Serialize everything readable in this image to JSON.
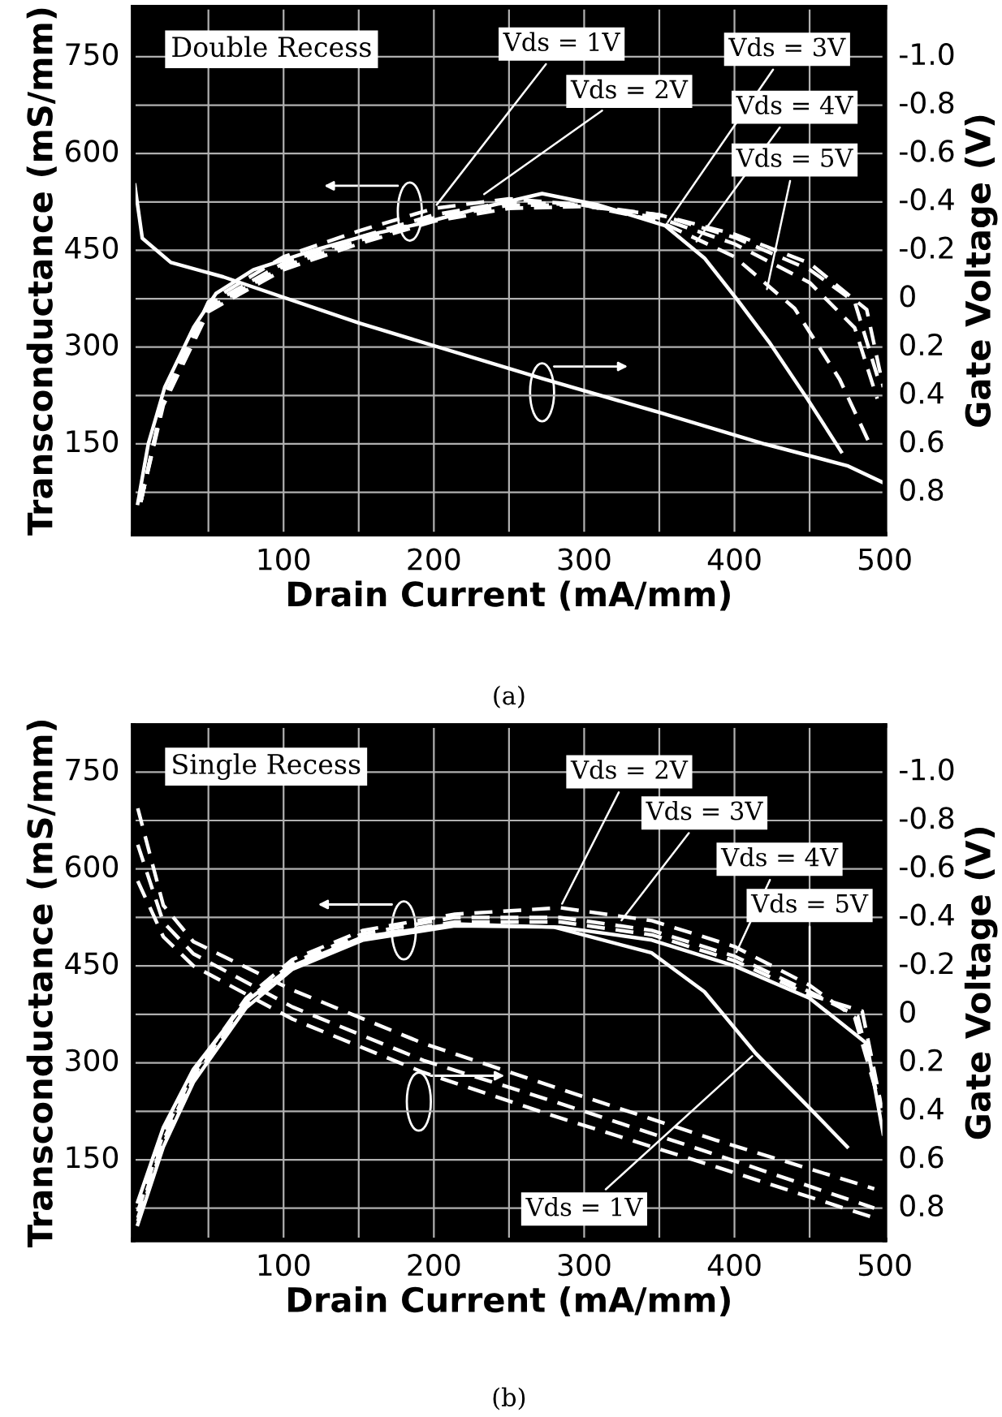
{
  "chart_data": [
    {
      "type": "line",
      "title": "Double Recess",
      "xlabel": "Drain Current (mA/mm)",
      "ylabel": "Transconductance (mS/mm)",
      "y2label": "Gate Voltage (V)",
      "grid": true,
      "xlim": [
        0,
        500
      ],
      "xticks": [
        {
          "value": 50,
          "label": null
        },
        100,
        {
          "value": 150,
          "label": null
        },
        200,
        {
          "value": 250,
          "label": null
        },
        300,
        {
          "value": 350,
          "label": null
        },
        400,
        {
          "value": 450,
          "label": null
        },
        500
      ],
      "ylim": [
        10,
        827
      ],
      "yticks": [
        {
          "value": 75,
          "label": null
        },
        150,
        {
          "value": 225,
          "label": null
        },
        300,
        {
          "value": 375,
          "label": null
        },
        450,
        {
          "value": 525,
          "label": null
        },
        600,
        {
          "value": 675,
          "label": null
        },
        750
      ],
      "y2lim": [
        0.973,
        -1.205
      ],
      "y2ticks": [
        {
          "value": -1.0,
          "label": "-1.0"
        },
        -0.8,
        -0.6,
        -0.4,
        -0.2,
        0,
        0.2,
        0.4,
        0.6,
        0.8
      ],
      "series": [
        {
          "color": "#ffffff",
          "line_style": "solid",
          "x": [
            3,
            10,
            21,
            40,
            55,
            80,
            120,
            155,
            194,
            230,
            272,
            310,
            354,
            380,
            402,
            423,
            449,
            471
          ],
          "values": [
            58,
            150,
            238,
            330,
            383,
            420,
            450,
            473,
            493,
            515,
            538,
            520,
            488,
            438,
            373,
            308,
            218,
            138
          ]
        },
        {
          "color": "#ffffff",
          "line_style": "dashed",
          "x": [
            5,
            20,
            50,
            100,
            150,
            200,
            250,
            300,
            350,
            400,
            440,
            470,
            490
          ],
          "values": [
            60,
            220,
            370,
            440,
            480,
            515,
            530,
            520,
            495,
            440,
            360,
            250,
            150
          ]
        },
        {
          "color": "#ffffff",
          "line_style": "dashed",
          "x": [
            5,
            20,
            50,
            100,
            150,
            200,
            250,
            300,
            350,
            400,
            450,
            480,
            495
          ],
          "values": [
            60,
            220,
            365,
            430,
            470,
            505,
            525,
            520,
            500,
            460,
            400,
            330,
            220
          ]
        },
        {
          "color": "#ffffff",
          "line_style": "dashed",
          "x": [
            5,
            20,
            50,
            100,
            150,
            200,
            250,
            300,
            350,
            400,
            450,
            480,
            497
          ],
          "values": [
            60,
            215,
            360,
            425,
            465,
            500,
            520,
            520,
            505,
            470,
            420,
            370,
            240
          ]
        },
        {
          "color": "#ffffff",
          "line_style": "dashed",
          "x": [
            5,
            20,
            50,
            100,
            150,
            200,
            250,
            300,
            350,
            400,
            450,
            488,
            499
          ],
          "values": [
            60,
            210,
            355,
            420,
            460,
            495,
            515,
            518,
            505,
            475,
            430,
            358,
            238
          ]
        },
        {
          "color": "#ffffff",
          "line_style": "solid",
          "axis": "y2",
          "x": [
            1,
            6,
            25,
            60,
            150,
            272,
            350,
            420,
            475,
            499
          ],
          "values": [
            -0.47,
            -0.25,
            -0.15,
            -0.09,
            0.1,
            0.33,
            0.47,
            0.6,
            0.69,
            0.76
          ]
        }
      ],
      "annotations": [
        {
          "text": "Vds = 1V",
          "x": 200,
          "y": 515
        },
        {
          "text": "Vds = 2V",
          "x": 231,
          "y": 533
        },
        {
          "text": "Vds = 3V",
          "x": 354,
          "y": 488
        },
        {
          "text": "Vds = 4V",
          "x": 373,
          "y": 458
        },
        {
          "text": "Vds = 5V",
          "x": 421,
          "y": 383
        },
        "(a)"
      ]
    },
    {
      "type": "line",
      "title": "Single Recess",
      "xlabel": "Drain Current (mA/mm)",
      "ylabel": "Transconductance (mS/mm)",
      "y2label": "Gate Voltage (V)",
      "grid": true,
      "xlim": [
        0,
        500
      ],
      "xticks": [
        {
          "value": 50,
          "label": null
        },
        100,
        {
          "value": 150,
          "label": null
        },
        200,
        {
          "value": 250,
          "label": null
        },
        300,
        {
          "value": 350,
          "label": null
        },
        400,
        {
          "value": 450,
          "label": null
        },
        500
      ],
      "ylim": [
        26,
        822
      ],
      "yticks": [
        {
          "value": 75,
          "label": null
        },
        150,
        {
          "value": 225,
          "label": null
        },
        300,
        {
          "value": 375,
          "label": null
        },
        450,
        {
          "value": 525,
          "label": null
        },
        600,
        {
          "value": 675,
          "label": null
        },
        750
      ],
      "y2lim": [
        0.931,
        -1.192
      ],
      "y2ticks": [
        {
          "value": -1.0,
          "label": "-1.0"
        },
        -0.8,
        -0.6,
        -0.4,
        -0.2,
        0,
        0.2,
        0.4,
        0.6,
        0.8
      ],
      "series": [
        {
          "color": "#ffffff",
          "line_style": "solid",
          "x": [
            3,
            20,
            40,
            75,
            106,
            153,
            214,
            280,
            345,
            380,
            414,
            450,
            475
          ],
          "values": [
            85,
            200,
            290,
            395,
            450,
            495,
            515,
            510,
            470,
            410,
            315,
            230,
            170
          ]
        },
        {
          "color": "#ffffff",
          "line_style": "dashed",
          "x": [
            3,
            20,
            40,
            75,
            106,
            153,
            214,
            284,
            345,
            400,
            450,
            480,
            495
          ],
          "values": [
            70,
            190,
            285,
            400,
            460,
            505,
            530,
            540,
            520,
            480,
            420,
            370,
            250
          ]
        },
        {
          "color": "#ffffff",
          "line_style": "dashed",
          "x": [
            3,
            20,
            40,
            75,
            106,
            153,
            214,
            284,
            345,
            400,
            450,
            482,
            496
          ],
          "values": [
            60,
            180,
            280,
            395,
            455,
            500,
            525,
            525,
            505,
            465,
            410,
            372,
            240
          ]
        },
        {
          "color": "#ffffff",
          "line_style": "dashed",
          "x": [
            3,
            20,
            40,
            75,
            106,
            153,
            214,
            284,
            345,
            400,
            450,
            485,
            498
          ],
          "values": [
            55,
            175,
            275,
            390,
            450,
            495,
            518,
            518,
            498,
            458,
            405,
            380,
            230
          ]
        },
        {
          "color": "#ffffff",
          "line_style": "solid",
          "x": [
            3,
            20,
            40,
            75,
            106,
            153,
            214,
            284,
            345,
            400,
            450,
            488,
            499
          ],
          "values": [
            50,
            170,
            270,
            385,
            445,
            490,
            512,
            510,
            490,
            450,
            400,
            330,
            190
          ]
        },
        {
          "color": "#ffffff",
          "line_style": "dashed",
          "axis": "y2",
          "x": [
            3,
            20,
            40,
            106,
            193,
            280,
            388,
            493
          ],
          "values": [
            -0.85,
            -0.45,
            -0.3,
            -0.1,
            0.12,
            0.3,
            0.52,
            0.72
          ]
        },
        {
          "color": "#ffffff",
          "line_style": "dashed",
          "axis": "y2",
          "x": [
            3,
            20,
            40,
            106,
            193,
            280,
            388,
            493
          ],
          "values": [
            -0.7,
            -0.38,
            -0.25,
            -0.03,
            0.19,
            0.36,
            0.58,
            0.8
          ]
        },
        {
          "color": "#ffffff",
          "line_style": "dashed",
          "axis": "y2",
          "x": [
            3,
            20,
            40,
            106,
            193,
            280,
            388,
            493
          ],
          "values": [
            -0.55,
            -0.32,
            -0.2,
            0.02,
            0.24,
            0.42,
            0.63,
            0.84
          ]
        }
      ],
      "annotations": [
        {
          "text": "Vds = 2V",
          "x": 284,
          "y": 540
        },
        {
          "text": "Vds = 3V",
          "x": 323,
          "y": 515
        },
        {
          "text": "Vds = 4V",
          "x": 400,
          "y": 465
        },
        {
          "text": "Vds = 5V",
          "x": 450,
          "y": 405
        },
        {
          "text": "Vds = 1V",
          "x": 414,
          "y": 315
        },
        "(b)"
      ]
    }
  ]
}
